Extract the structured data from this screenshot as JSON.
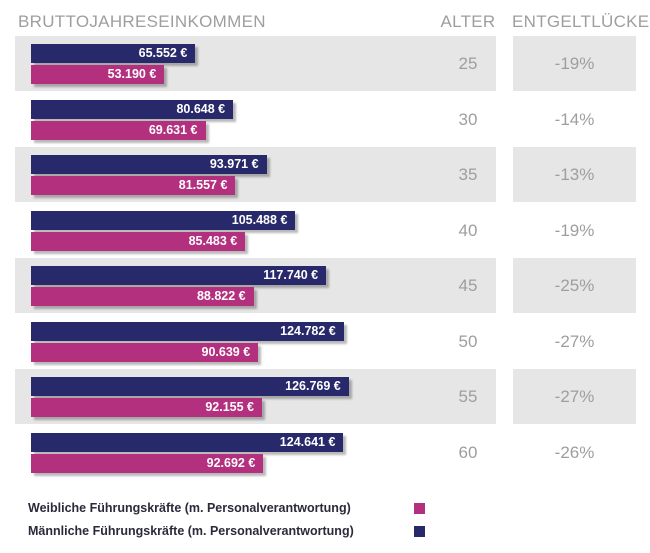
{
  "chart_data": {
    "type": "bar",
    "orientation": "horizontal",
    "title": "",
    "columns": {
      "income": "BRUTTOJAHRESEINKOMMEN",
      "age": "ALTER",
      "gap": "ENTGELTLÜCKE"
    },
    "categories": [
      "25",
      "30",
      "35",
      "40",
      "45",
      "50",
      "55",
      "60"
    ],
    "series": [
      {
        "name": "Männliche Führungskräfte (m. Personalverantwortung)",
        "key": "male",
        "values": [
          65552,
          80648,
          93971,
          105488,
          117740,
          124782,
          126769,
          124641
        ],
        "labels": [
          "65.552 €",
          "80.648 €",
          "93.971 €",
          "105.488 €",
          "117.740 €",
          "124.782 €",
          "126.769 €",
          "124.641 €"
        ]
      },
      {
        "name": "Weibliche Führungskräfte (m. Personalverantwortung)",
        "key": "female",
        "values": [
          53190,
          69631,
          81557,
          85483,
          88822,
          90639,
          92155,
          92692
        ],
        "labels": [
          "53.190 €",
          "69.631 €",
          "81.557 €",
          "85.483 €",
          "88.822 €",
          "90.639 €",
          "92.155 €",
          "92.692 €"
        ]
      }
    ],
    "gap": [
      "-19%",
      "-14%",
      "-13%",
      "-19%",
      "-25%",
      "-27%",
      "-27%",
      "-26%"
    ],
    "xlim": [
      0,
      154000
    ],
    "legend": [
      {
        "label": "Weibliche Führungskräfte (m. Personalverantwortung)",
        "color": "#b3307e"
      },
      {
        "label": "Männliche Führungskräfte (m. Personalverantwortung)",
        "color": "#28296a"
      }
    ],
    "legend_position": "bottom-left"
  }
}
